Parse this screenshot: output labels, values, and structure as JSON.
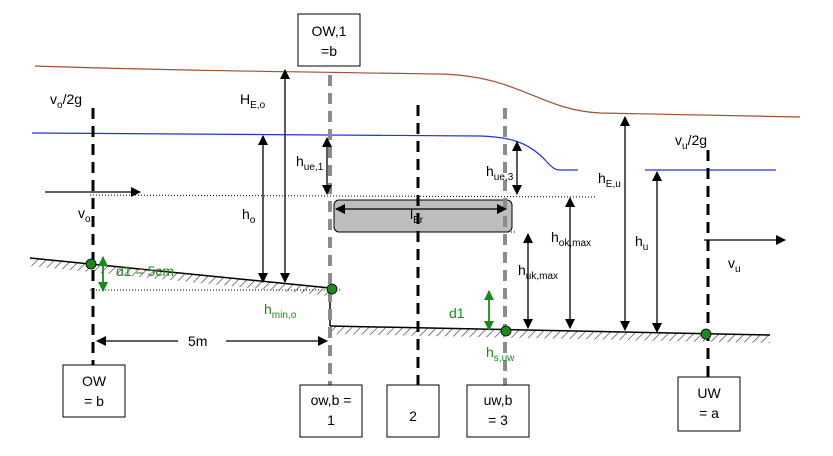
{
  "colors": {
    "energy_line": "#a0522d",
    "water_surface": "#2233dd",
    "bridge_fill": "#bdbdbd",
    "marker_green": "#1a8a1a",
    "dashed_dark": "#000000",
    "dashed_gray": "#8c8c8c"
  },
  "boxes": {
    "ow1": [
      "OW,1",
      "=b"
    ],
    "ow": [
      "OW",
      "= b"
    ],
    "owb": [
      "ow,b =",
      "1"
    ],
    "two": [
      "2"
    ],
    "uwb": [
      "uw,b",
      "= 3"
    ],
    "uw": [
      "UW",
      "= a"
    ]
  },
  "labels": {
    "vo2g": {
      "main": "v",
      "sub": "o",
      "tail": "/2g"
    },
    "vu2g": {
      "main": "v",
      "sub": "u",
      "tail": "/2g"
    },
    "vo": {
      "main": "v",
      "sub": "o"
    },
    "vu": {
      "main": "v",
      "sub": "u"
    },
    "HEo": {
      "main": "H",
      "sub": "E,o"
    },
    "hue1": {
      "main": "h",
      "sub": "ue,1"
    },
    "hue3": {
      "main": "h",
      "sub": "ue,3"
    },
    "ho": {
      "main": "h",
      "sub": "o"
    },
    "lBr": {
      "main": "l",
      "sub": "Br"
    },
    "hEu": {
      "main": "h",
      "sub": "E,u"
    },
    "hu": {
      "main": "h",
      "sub": "u"
    },
    "hokmax": {
      "main": "h",
      "sub": "ok,max"
    },
    "hukmax": {
      "main": "h",
      "sub": "uk,max"
    },
    "d1_5cm": "d1 = 5cm",
    "d1": "d1",
    "hmino": {
      "main": "h",
      "sub": "min,o"
    },
    "hsuw": {
      "main": "h",
      "sub": "s,uw"
    },
    "five_m": "5m"
  }
}
